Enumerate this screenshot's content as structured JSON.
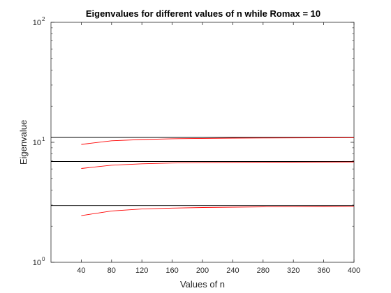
{
  "chart_data": {
    "type": "line",
    "title": "Eigenvalues for different values of n while Romax = 10",
    "xlabel": "Values of n",
    "ylabel": "Eigenvalue",
    "xlim": [
      0,
      400
    ],
    "ylim": [
      1,
      100
    ],
    "yscale": "log",
    "grid": false,
    "x_ticks": [
      40,
      80,
      120,
      160,
      200,
      240,
      280,
      320,
      360,
      400
    ],
    "y_ticks": [
      {
        "value": 1,
        "base": "10",
        "exp": "0"
      },
      {
        "value": 10,
        "base": "10",
        "exp": "1"
      },
      {
        "value": 100,
        "base": "10",
        "exp": "2"
      }
    ],
    "series": [
      {
        "color": "#000000",
        "x": [
          0,
          400
        ],
        "values": [
          10.98,
          10.98
        ]
      },
      {
        "color": "#000000",
        "x": [
          0,
          400
        ],
        "values": [
          6.92,
          6.92
        ]
      },
      {
        "color": "#000000",
        "x": [
          0,
          400
        ],
        "values": [
          2.97,
          2.97
        ]
      },
      {
        "color": "#ff0000",
        "x": [
          40,
          80,
          120,
          160,
          200,
          240,
          280,
          320,
          360,
          400
        ],
        "values": [
          9.6,
          10.3,
          10.55,
          10.7,
          10.78,
          10.83,
          10.86,
          10.88,
          10.9,
          10.92
        ]
      },
      {
        "color": "#ff0000",
        "x": [
          40,
          80,
          120,
          160,
          200,
          240,
          280,
          320,
          360,
          400
        ],
        "values": [
          6.05,
          6.45,
          6.62,
          6.72,
          6.77,
          6.8,
          6.82,
          6.84,
          6.85,
          6.86
        ]
      },
      {
        "color": "#ff0000",
        "x": [
          40,
          80,
          120,
          160,
          200,
          240,
          280,
          320,
          360,
          400
        ],
        "values": [
          2.45,
          2.68,
          2.78,
          2.83,
          2.86,
          2.88,
          2.9,
          2.91,
          2.92,
          2.93
        ]
      }
    ]
  }
}
